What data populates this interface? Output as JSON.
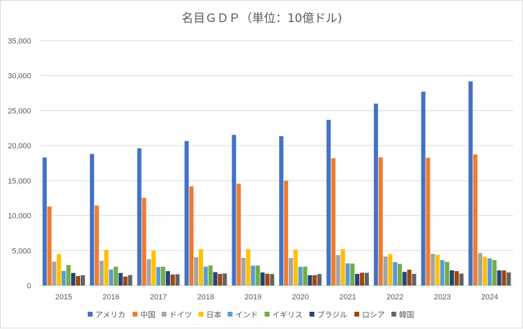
{
  "chart_data": {
    "type": "bar",
    "title": "名目ＧＤＰ（単位：10億ドル)",
    "xlabel": "",
    "ylabel": "",
    "ylim": [
      0,
      35000
    ],
    "yticks": [
      "0",
      "5,000",
      "10,000",
      "15,000",
      "20,000",
      "25,000",
      "30,000",
      "35,000"
    ],
    "grid": true,
    "legend": "bottom",
    "categories": [
      "2015",
      "2016",
      "2017",
      "2018",
      "2019",
      "2020",
      "2021",
      "2022",
      "2023",
      "2024"
    ],
    "series": [
      {
        "name": "アメリカ",
        "color": "#4472c4",
        "values": [
          18295,
          18805,
          19612,
          20657,
          21540,
          21354,
          23681,
          26007,
          27721,
          29185
        ]
      },
      {
        "name": "中国",
        "color": "#ed7d31",
        "values": [
          11290,
          11440,
          12540,
          14180,
          14560,
          14990,
          18200,
          18320,
          18270,
          18750
        ]
      },
      {
        "name": "ドイツ",
        "color": "#a5a5a5",
        "values": [
          3420,
          3540,
          3760,
          4050,
          3960,
          3940,
          4350,
          4160,
          4530,
          4660
        ]
      },
      {
        "name": "日本",
        "color": "#ffc000",
        "values": [
          4500,
          5100,
          5000,
          5200,
          5200,
          5150,
          5200,
          4500,
          4400,
          4100
        ]
      },
      {
        "name": "インド",
        "color": "#5b9bd5",
        "values": [
          2100,
          2290,
          2650,
          2700,
          2840,
          2670,
          3170,
          3350,
          3640,
          3890
        ]
      },
      {
        "name": "イギリス",
        "color": "#70ad47",
        "values": [
          2930,
          2700,
          2680,
          2880,
          2860,
          2700,
          3140,
          3100,
          3380,
          3640
        ]
      },
      {
        "name": "ブラジル",
        "color": "#264478",
        "values": [
          1800,
          1800,
          2060,
          1920,
          1870,
          1480,
          1670,
          1950,
          2170,
          2170
        ]
      },
      {
        "name": "ロシア",
        "color": "#9e480e",
        "values": [
          1360,
          1280,
          1570,
          1660,
          1690,
          1490,
          1840,
          2270,
          2060,
          2160
        ]
      },
      {
        "name": "韓国",
        "color": "#636363",
        "values": [
          1470,
          1500,
          1620,
          1730,
          1650,
          1640,
          1820,
          1670,
          1710,
          1870
        ]
      }
    ]
  }
}
